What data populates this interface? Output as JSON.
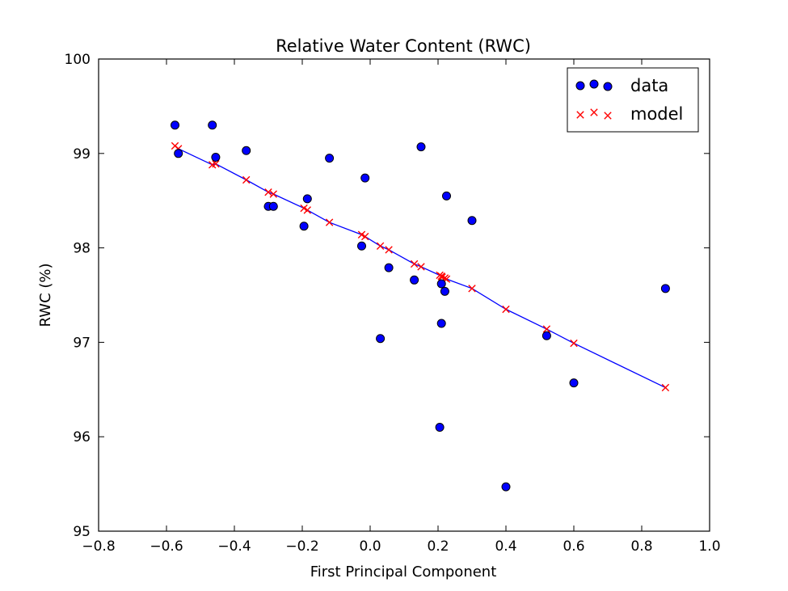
{
  "chart_data": {
    "type": "scatter",
    "title": "Relative Water Content (RWC)",
    "xlabel": "First Principal Component",
    "ylabel": "RWC (%)",
    "xlim": [
      -0.8,
      1.0
    ],
    "ylim": [
      95,
      100
    ],
    "xticks": [
      "−0.8",
      "−0.6",
      "−0.4",
      "−0.2",
      "0.0",
      "0.2",
      "0.4",
      "0.6",
      "0.8",
      "1.0"
    ],
    "yticks": [
      "95",
      "96",
      "97",
      "98",
      "99",
      "100"
    ],
    "grid": false,
    "legend_position": "top-right",
    "colors": {
      "data": "#0000ff",
      "model": "#ff0000",
      "line": "#0000ff"
    },
    "series": [
      {
        "name": "data",
        "marker": "circle",
        "points": [
          [
            -0.575,
            99.3
          ],
          [
            -0.565,
            99.0
          ],
          [
            -0.465,
            99.3
          ],
          [
            -0.455,
            98.96
          ],
          [
            -0.365,
            99.03
          ],
          [
            -0.3,
            98.44
          ],
          [
            -0.285,
            98.44
          ],
          [
            -0.195,
            98.23
          ],
          [
            -0.185,
            98.52
          ],
          [
            -0.12,
            98.95
          ],
          [
            -0.025,
            98.02
          ],
          [
            -0.015,
            98.74
          ],
          [
            0.03,
            97.04
          ],
          [
            0.055,
            97.79
          ],
          [
            0.13,
            97.66
          ],
          [
            0.15,
            99.07
          ],
          [
            0.205,
            96.1
          ],
          [
            0.21,
            97.2
          ],
          [
            0.21,
            97.62
          ],
          [
            0.22,
            97.54
          ],
          [
            0.225,
            98.55
          ],
          [
            0.3,
            98.29
          ],
          [
            0.4,
            95.47
          ],
          [
            0.52,
            97.07
          ],
          [
            0.6,
            96.57
          ],
          [
            0.87,
            97.57
          ]
        ]
      },
      {
        "name": "model",
        "marker": "x",
        "line": true,
        "points": [
          [
            -0.575,
            99.08
          ],
          [
            -0.565,
            99.05
          ],
          [
            -0.465,
            98.88
          ],
          [
            -0.455,
            98.89
          ],
          [
            -0.365,
            98.72
          ],
          [
            -0.3,
            98.59
          ],
          [
            -0.285,
            98.57
          ],
          [
            -0.195,
            98.42
          ],
          [
            -0.185,
            98.4
          ],
          [
            -0.12,
            98.27
          ],
          [
            -0.025,
            98.14
          ],
          [
            -0.015,
            98.12
          ],
          [
            0.03,
            98.02
          ],
          [
            0.055,
            97.98
          ],
          [
            0.13,
            97.83
          ],
          [
            0.15,
            97.8
          ],
          [
            0.205,
            97.71
          ],
          [
            0.21,
            97.7
          ],
          [
            0.212,
            97.69
          ],
          [
            0.22,
            97.68
          ],
          [
            0.225,
            97.67
          ],
          [
            0.3,
            97.57
          ],
          [
            0.4,
            97.35
          ],
          [
            0.52,
            97.14
          ],
          [
            0.6,
            96.99
          ],
          [
            0.87,
            96.52
          ]
        ]
      }
    ]
  }
}
